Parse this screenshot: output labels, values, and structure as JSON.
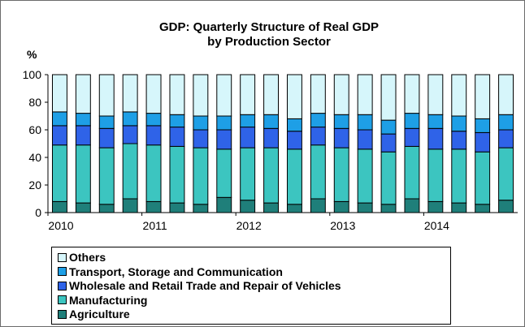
{
  "chart_data": {
    "type": "bar",
    "stacked": true,
    "title": "GDP: Quarterly Structure of Real GDP",
    "subtitle": "by Production Sector",
    "ylabel": "%",
    "xlabel": "",
    "ylim": [
      0,
      100
    ],
    "yticks": [
      0,
      20,
      40,
      60,
      80,
      100
    ],
    "year_labels": [
      "2010",
      "2011",
      "2012",
      "2013",
      "2014"
    ],
    "grid": false,
    "legend_position": "bottom",
    "categories": [
      "2010 Q1",
      "2010 Q2",
      "2010 Q3",
      "2010 Q4",
      "2011 Q1",
      "2011 Q2",
      "2011 Q3",
      "2011 Q4",
      "2012 Q1",
      "2012 Q2",
      "2012 Q3",
      "2012 Q4",
      "2013 Q1",
      "2013 Q2",
      "2013 Q3",
      "2013 Q4",
      "2014 Q1",
      "2014 Q2",
      "2014 Q3",
      "2014 Q4"
    ],
    "series": [
      {
        "name": "Agriculture",
        "color": "#1f7f7a",
        "values": [
          8,
          7,
          6,
          10,
          8,
          7,
          6,
          11,
          9,
          7,
          6,
          10,
          8,
          7,
          6,
          10,
          8,
          7,
          6,
          9
        ]
      },
      {
        "name": "Manufacturing",
        "color": "#3cc5c0",
        "values": [
          41,
          42,
          41,
          40,
          41,
          41,
          41,
          35,
          38,
          40,
          40,
          39,
          39,
          39,
          38,
          38,
          38,
          39,
          38,
          38
        ]
      },
      {
        "name": "Wholesale and Retail Trade and Repair of Vehicles",
        "color": "#2f63e8",
        "values": [
          14,
          14,
          14,
          13,
          14,
          14,
          13,
          14,
          15,
          14,
          13,
          13,
          14,
          14,
          13,
          13,
          15,
          13,
          14,
          13
        ]
      },
      {
        "name": "Transport, Storage and Communication",
        "color": "#1e9fe6",
        "values": [
          10,
          9,
          9,
          10,
          9,
          9,
          10,
          10,
          9,
          10,
          9,
          10,
          10,
          11,
          10,
          11,
          10,
          11,
          10,
          11
        ]
      },
      {
        "name": "Others",
        "color": "#d6f6fb",
        "values": [
          27,
          28,
          30,
          27,
          28,
          29,
          30,
          30,
          29,
          29,
          32,
          28,
          29,
          29,
          33,
          28,
          29,
          30,
          32,
          29
        ]
      }
    ]
  }
}
